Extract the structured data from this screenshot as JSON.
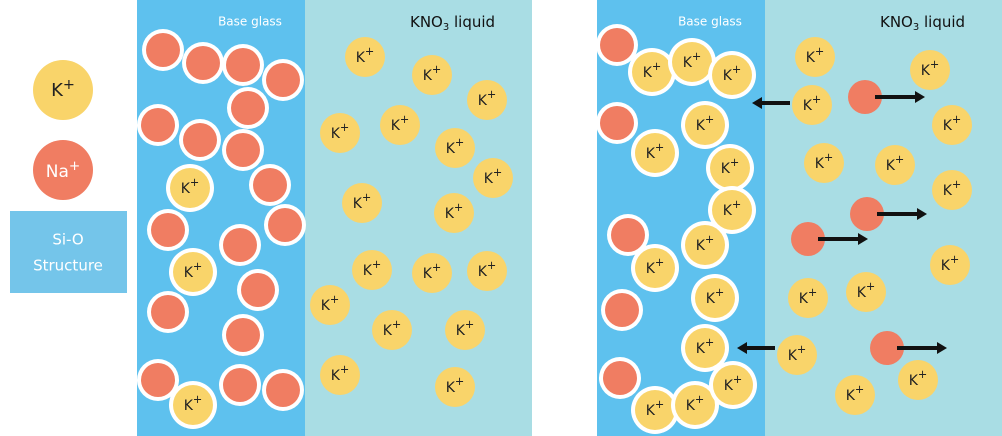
{
  "legend": {
    "potassium": {
      "symbol": "K",
      "charge": "+"
    },
    "sodium": {
      "symbol": "Na",
      "charge": "+"
    },
    "structure": {
      "line1": "Si-O",
      "line2": "Structure"
    }
  },
  "panels": [
    {
      "glass_label": "Base glass",
      "liquid_label": {
        "prefix": "KNO",
        "subscript": "3",
        "suffix": " liquid"
      }
    },
    {
      "glass_label": "Base glass",
      "liquid_label": {
        "prefix": "KNO",
        "subscript": "3",
        "suffix": " liquid"
      }
    }
  ]
}
